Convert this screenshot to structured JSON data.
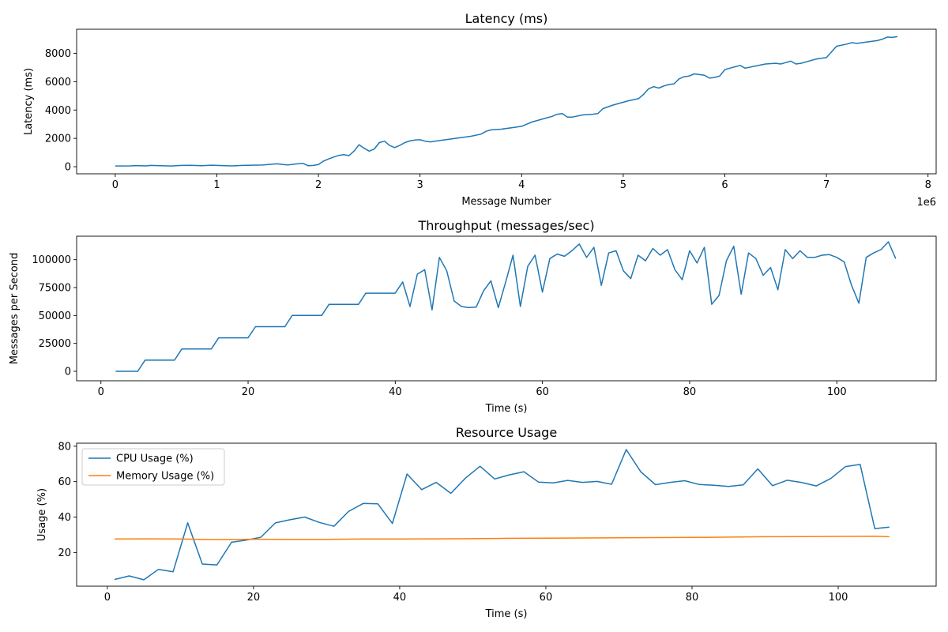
{
  "chart_data": [
    {
      "type": "line",
      "title": "Latency (ms)",
      "xlabel": "Message Number",
      "ylabel": "Latency (ms)",
      "x_offset_text": "1e6",
      "xlim": [
        -0.38,
        8.08
      ],
      "ylim": [
        -500,
        9700
      ],
      "xticks": [
        0,
        1,
        2,
        3,
        4,
        5,
        6,
        7,
        8
      ],
      "yticks": [
        0,
        2000,
        4000,
        6000,
        8000
      ],
      "grid": false,
      "series": [
        {
          "color": "#1f77b4",
          "x": [
            0,
            0.15,
            0.2,
            0.3,
            0.35,
            0.45,
            0.55,
            0.65,
            0.75,
            0.85,
            0.95,
            1.05,
            1.15,
            1.25,
            1.35,
            1.45,
            1.55,
            1.6,
            1.65,
            1.7,
            1.75,
            1.8,
            1.85,
            1.9,
            1.95,
            2.0,
            2.05,
            2.1,
            2.15,
            2.2,
            2.25,
            2.3,
            2.35,
            2.4,
            2.45,
            2.5,
            2.55,
            2.6,
            2.65,
            2.7,
            2.75,
            2.8,
            2.85,
            2.9,
            2.95,
            3.0,
            3.05,
            3.1,
            3.2,
            3.3,
            3.4,
            3.5,
            3.6,
            3.65,
            3.7,
            3.8,
            3.9,
            4.0,
            4.05,
            4.1,
            4.2,
            4.3,
            4.35,
            4.4,
            4.45,
            4.5,
            4.6,
            4.7,
            4.75,
            4.8,
            4.9,
            5.0,
            5.05,
            5.15,
            5.2,
            5.25,
            5.3,
            5.35,
            5.4,
            5.45,
            5.5,
            5.55,
            5.6,
            5.65,
            5.7,
            5.75,
            5.8,
            5.85,
            5.9,
            5.95,
            6.0,
            6.05,
            6.1,
            6.15,
            6.2,
            6.3,
            6.4,
            6.5,
            6.55,
            6.6,
            6.65,
            6.7,
            6.75,
            6.8,
            6.85,
            6.9,
            6.95,
            7.0,
            7.05,
            7.1,
            7.2,
            7.25,
            7.3,
            7.4,
            7.5,
            7.55,
            7.6,
            7.65,
            7.7
          ],
          "y": [
            50,
            60,
            80,
            60,
            90,
            70,
            50,
            90,
            100,
            70,
            110,
            80,
            60,
            90,
            110,
            120,
            180,
            200,
            150,
            130,
            170,
            210,
            230,
            70,
            90,
            150,
            400,
            550,
            680,
            800,
            850,
            780,
            1100,
            1550,
            1300,
            1100,
            1250,
            1700,
            1800,
            1500,
            1350,
            1500,
            1700,
            1820,
            1880,
            1900,
            1800,
            1750,
            1850,
            1950,
            2050,
            2150,
            2300,
            2500,
            2600,
            2650,
            2750,
            2850,
            3000,
            3150,
            3350,
            3550,
            3700,
            3750,
            3500,
            3500,
            3650,
            3700,
            3750,
            4100,
            4350,
            4550,
            4650,
            4800,
            5100,
            5500,
            5650,
            5550,
            5700,
            5800,
            5850,
            6200,
            6350,
            6400,
            6550,
            6500,
            6450,
            6250,
            6300,
            6400,
            6850,
            6950,
            7050,
            7150,
            6950,
            7100,
            7250,
            7300,
            7250,
            7350,
            7450,
            7250,
            7300,
            7400,
            7500,
            7600,
            7650,
            7700,
            8100,
            8500,
            8650,
            8750,
            8700,
            8800,
            8900,
            9000,
            9150,
            9120,
            9180
          ]
        }
      ]
    },
    {
      "type": "line",
      "title": "Throughput (messages/sec)",
      "xlabel": "Time (s)",
      "ylabel": "Messages per Second",
      "xlim": [
        -3.3,
        113.5
      ],
      "ylim": [
        -8500,
        121000
      ],
      "xticks": [
        0,
        20,
        40,
        60,
        80,
        100
      ],
      "yticks": [
        0,
        25000,
        50000,
        75000,
        100000
      ],
      "grid": false,
      "series": [
        {
          "color": "#1f77b4",
          "x": [
            2,
            5,
            6,
            10,
            11,
            13,
            15,
            16,
            18,
            20,
            21,
            25,
            26,
            28,
            29,
            30,
            31,
            33,
            35,
            36,
            38,
            40,
            41,
            42,
            43,
            44,
            45,
            46,
            47,
            48,
            49,
            50,
            51,
            52,
            53,
            54,
            55,
            56,
            57,
            58,
            59,
            60,
            61,
            62,
            63,
            64,
            65,
            66,
            67,
            68,
            69,
            70,
            71,
            72,
            73,
            74,
            75,
            76,
            77,
            78,
            79,
            80,
            81,
            82,
            83,
            84,
            85,
            86,
            87,
            88,
            89,
            90,
            91,
            92,
            93,
            94,
            95,
            96,
            97,
            98,
            99,
            100,
            101,
            102,
            103,
            104,
            105,
            106,
            107,
            108
          ],
          "y": [
            0,
            0,
            10000,
            10000,
            20000,
            20000,
            20000,
            30000,
            30000,
            30000,
            40000,
            40000,
            50000,
            50000,
            50000,
            50000,
            60000,
            60000,
            60000,
            70000,
            70000,
            70000,
            80000,
            58000,
            87000,
            91000,
            55000,
            102000,
            90000,
            63000,
            58000,
            57000,
            57500,
            72000,
            81000,
            57000,
            80000,
            104000,
            58000,
            94000,
            104000,
            71000,
            101000,
            105000,
            103000,
            108000,
            114000,
            102000,
            111000,
            77000,
            106000,
            108000,
            90000,
            83000,
            104000,
            99000,
            110000,
            104000,
            109000,
            91000,
            82000,
            108000,
            97000,
            111000,
            60000,
            68000,
            99000,
            112000,
            69000,
            106000,
            101000,
            86000,
            93000,
            73000,
            109000,
            101000,
            108000,
            102000,
            102000,
            104000,
            104500,
            102000,
            98000,
            77000,
            61000,
            102000,
            106000,
            109000,
            116000,
            101000
          ]
        }
      ]
    },
    {
      "type": "line",
      "title": "Resource Usage",
      "xlabel": "Time (s)",
      "ylabel": "Usage (%)",
      "xlim": [
        -4.2,
        113.4
      ],
      "ylim": [
        1.0,
        81.7
      ],
      "xticks": [
        0,
        20,
        40,
        60,
        80,
        100
      ],
      "yticks": [
        20,
        40,
        60,
        80
      ],
      "grid": false,
      "legend": "top-left",
      "series": [
        {
          "name": "CPU Usage (%)",
          "color": "#1f77b4",
          "x": [
            1,
            3,
            5,
            7,
            9,
            11,
            13,
            15,
            17,
            19,
            21,
            23,
            25,
            27,
            29,
            31,
            33,
            35,
            37,
            39,
            41,
            43,
            45,
            47,
            49,
            51,
            53,
            55,
            57,
            59,
            61,
            63,
            65,
            67,
            69,
            71,
            73,
            75,
            77,
            79,
            81,
            83,
            85,
            87,
            89,
            91,
            93,
            95,
            97,
            99,
            101,
            103,
            105,
            107
          ],
          "y": [
            4.8,
            6.8,
            4.6,
            10.5,
            9.1,
            36.7,
            13.5,
            13.0,
            25.8,
            27.0,
            28.6,
            36.7,
            38.5,
            40.0,
            37.0,
            34.8,
            43.2,
            47.7,
            47.5,
            36.4,
            64.3,
            55.5,
            59.6,
            53.4,
            62.0,
            68.7,
            61.5,
            63.8,
            65.6,
            59.7,
            59.3,
            60.7,
            59.6,
            60.1,
            58.5,
            78.1,
            65.5,
            58.3,
            59.6,
            60.5,
            58.4,
            58.0,
            57.3,
            58.2,
            67.2,
            57.7,
            60.8,
            59.5,
            57.6,
            61.8,
            68.5,
            69.7,
            33.5,
            34.3
          ]
        },
        {
          "name": "Memory Usage (%)",
          "color": "#ff7f0e",
          "x": [
            1,
            5,
            10,
            15,
            20,
            25,
            30,
            35,
            40,
            45,
            50,
            55,
            60,
            65,
            70,
            75,
            80,
            85,
            90,
            95,
            100,
            105,
            107
          ],
          "y": [
            27.6,
            27.7,
            27.6,
            27.3,
            27.5,
            27.4,
            27.4,
            27.6,
            27.6,
            27.7,
            27.8,
            28.0,
            28.1,
            28.2,
            28.3,
            28.4,
            28.5,
            28.7,
            28.9,
            29.0,
            29.1,
            29.2,
            28.9
          ]
        }
      ]
    }
  ]
}
